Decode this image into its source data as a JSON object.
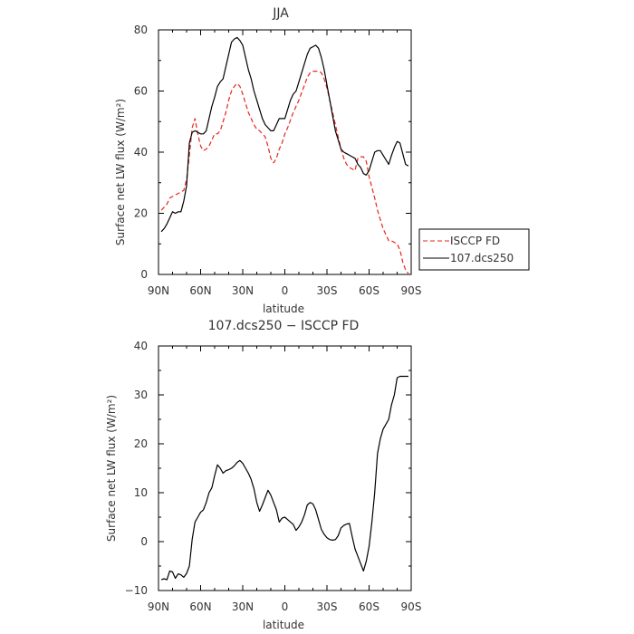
{
  "colors": {
    "isccp": "#e8231c",
    "model": "#000000",
    "background": "#ffffff"
  },
  "legend": {
    "items": [
      {
        "label": "ISCCP FD",
        "color": "#e8231c",
        "dash": "dashed"
      },
      {
        "label": "107.dcs250",
        "color": "#000000",
        "dash": "solid"
      }
    ]
  },
  "chart_data": [
    {
      "type": "line",
      "title": "JJA",
      "xlabel": "latitude",
      "ylabel": "Surface net LW flux (W/m²)",
      "xlim": [
        90,
        -90
      ],
      "ylim": [
        0,
        80
      ],
      "xticks": [
        90,
        60,
        30,
        0,
        -30,
        -60,
        -90
      ],
      "xticklabels": [
        "90N",
        "60N",
        "30N",
        "0",
        "30S",
        "60S",
        "90S"
      ],
      "yticks": [
        0,
        20,
        40,
        60,
        80
      ],
      "yticklabels": [
        "0",
        "20",
        "40",
        "60",
        "80"
      ],
      "grid": false,
      "legend_position": "right-middle",
      "series": [
        {
          "name": "ISCCP FD",
          "color": "#e8231c",
          "dash": "dashed",
          "x": [
            88,
            86,
            84,
            82,
            80,
            78,
            76,
            74,
            72,
            70,
            68,
            66,
            64,
            62,
            60,
            58,
            56,
            54,
            52,
            50,
            48,
            46,
            44,
            42,
            40,
            38,
            36,
            34,
            32,
            30,
            28,
            26,
            24,
            22,
            20,
            18,
            16,
            14,
            12,
            10,
            8,
            6,
            4,
            2,
            0,
            -2,
            -4,
            -6,
            -8,
            -10,
            -12,
            -14,
            -16,
            -18,
            -20,
            -22,
            -24,
            -26,
            -28,
            -30,
            -32,
            -34,
            -36,
            -38,
            -40,
            -42,
            -44,
            -46,
            -48,
            -50,
            -52,
            -54,
            -56,
            -58,
            -60,
            -62,
            -64,
            -66,
            -68,
            -70,
            -72,
            -74,
            -76,
            -78,
            -80,
            -82,
            -84,
            -86,
            -88
          ],
          "y": [
            21,
            22,
            23,
            25,
            25.5,
            26,
            26.5,
            27,
            27.5,
            31,
            39,
            48,
            51,
            46,
            42,
            40.5,
            41,
            42,
            44,
            46,
            46,
            47,
            50,
            53,
            57,
            60,
            61.5,
            62.5,
            61.5,
            59,
            56,
            53,
            51,
            49,
            47.5,
            47,
            46,
            45,
            42,
            38,
            36.5,
            38,
            41,
            43,
            46,
            48,
            50.5,
            53,
            55,
            57,
            59.5,
            62,
            64.5,
            66,
            66.5,
            66.5,
            66.5,
            66,
            64,
            61,
            57,
            53,
            49,
            45,
            41,
            38,
            36,
            35,
            34.5,
            34,
            38,
            38.5,
            38.5,
            37,
            32,
            28.5,
            25,
            21,
            18,
            15,
            13,
            11,
            11,
            10.5,
            10,
            8,
            4,
            1.5,
            0.3
          ]
        },
        {
          "name": "107.dcs250",
          "color": "#000000",
          "dash": "solid",
          "x": [
            88,
            86,
            84,
            82,
            80,
            78,
            76,
            74,
            72,
            70,
            68,
            66,
            64,
            62,
            60,
            58,
            56,
            54,
            52,
            50,
            48,
            46,
            44,
            42,
            40,
            38,
            36,
            34,
            32,
            30,
            28,
            26,
            24,
            22,
            20,
            18,
            16,
            14,
            12,
            10,
            8,
            6,
            4,
            2,
            0,
            -2,
            -4,
            -6,
            -8,
            -10,
            -12,
            -14,
            -16,
            -18,
            -20,
            -22,
            -24,
            -26,
            -28,
            -30,
            -32,
            -34,
            -36,
            -38,
            -40,
            -42,
            -44,
            -46,
            -48,
            -50,
            -52,
            -54,
            -56,
            -58,
            -60,
            -62,
            -64,
            -66,
            -68,
            -70,
            -72,
            -74,
            -76,
            -78,
            -80,
            -82,
            -84,
            -86,
            -88
          ],
          "y": [
            14,
            15,
            16.5,
            18.5,
            20.5,
            20,
            20.5,
            20.5,
            24,
            29,
            43,
            46.5,
            47,
            46.5,
            46,
            46,
            47,
            51,
            55,
            58,
            61.5,
            63,
            64,
            68,
            72,
            76,
            77,
            77.5,
            76.5,
            75,
            71,
            67,
            64,
            60,
            57,
            54,
            51,
            49,
            48,
            47,
            47,
            49,
            51,
            51,
            51,
            54,
            57,
            59,
            60,
            63,
            66,
            69,
            72,
            74,
            74.5,
            75,
            74,
            71,
            67,
            62,
            57,
            52,
            47,
            44,
            41,
            40,
            39.5,
            39,
            38.5,
            38,
            36,
            35,
            33,
            32.5,
            34,
            37,
            40,
            40.5,
            40.5,
            39,
            37.5,
            36,
            39,
            41.5,
            43.5,
            43,
            39.5,
            36,
            35.5
          ]
        }
      ]
    },
    {
      "type": "line",
      "title": "107.dcs250 − ISCCP FD",
      "xlabel": "latitude",
      "ylabel": "Surface net LW flux (W/m²)",
      "xlim": [
        90,
        -90
      ],
      "ylim": [
        -10,
        40
      ],
      "xticks": [
        90,
        60,
        30,
        0,
        -30,
        -60,
        -90
      ],
      "xticklabels": [
        "90N",
        "60N",
        "30N",
        "0",
        "30S",
        "60S",
        "90S"
      ],
      "yticks": [
        -10,
        0,
        10,
        20,
        30,
        40
      ],
      "yticklabels": [
        "−10",
        "0",
        "10",
        "20",
        "30",
        "40"
      ],
      "grid": false,
      "series": [
        {
          "name": "107.dcs250 − ISCCP FD",
          "color": "#000000",
          "dash": "solid",
          "x": [
            88,
            86,
            84,
            82,
            80,
            78,
            76,
            74,
            72,
            70,
            68,
            66,
            64,
            62,
            60,
            58,
            56,
            54,
            52,
            50,
            48,
            46,
            44,
            42,
            40,
            38,
            36,
            34,
            32,
            30,
            28,
            26,
            24,
            22,
            20,
            18,
            16,
            14,
            12,
            10,
            8,
            6,
            4,
            2,
            0,
            -2,
            -4,
            -6,
            -8,
            -10,
            -12,
            -14,
            -16,
            -18,
            -20,
            -22,
            -24,
            -26,
            -28,
            -30,
            -32,
            -34,
            -36,
            -38,
            -40,
            -42,
            -44,
            -46,
            -48,
            -50,
            -52,
            -54,
            -56,
            -58,
            -60,
            -62,
            -64,
            -66,
            -68,
            -70,
            -72,
            -74,
            -76,
            -78,
            -80,
            -82,
            -84,
            -86,
            -88
          ],
          "y": [
            -7.8,
            -7.6,
            -7.8,
            -6,
            -6.2,
            -7.5,
            -6.6,
            -6.8,
            -7.3,
            -6.5,
            -5,
            0.5,
            4,
            5,
            6,
            6.5,
            8,
            10,
            11,
            13.5,
            15.7,
            15,
            14,
            14.5,
            14.7,
            15,
            15.5,
            16.2,
            16.6,
            16,
            15,
            14,
            12.7,
            10.8,
            8,
            6.2,
            7.5,
            9,
            10.5,
            9.5,
            8,
            6.5,
            4,
            4.8,
            5,
            4.5,
            4,
            3.5,
            2.3,
            3,
            4,
            5.5,
            7.5,
            8,
            7.7,
            6.5,
            4.5,
            2.5,
            1.5,
            0.8,
            0.4,
            0.3,
            0.4,
            1.2,
            2.8,
            3.3,
            3.6,
            3.7,
            1,
            -1.5,
            -3,
            -4.5,
            -6,
            -4,
            -1,
            4,
            10,
            18,
            21,
            23,
            24,
            25,
            28,
            30,
            33.5,
            33.8,
            33.8,
            33.8,
            33.8
          ]
        }
      ]
    }
  ]
}
